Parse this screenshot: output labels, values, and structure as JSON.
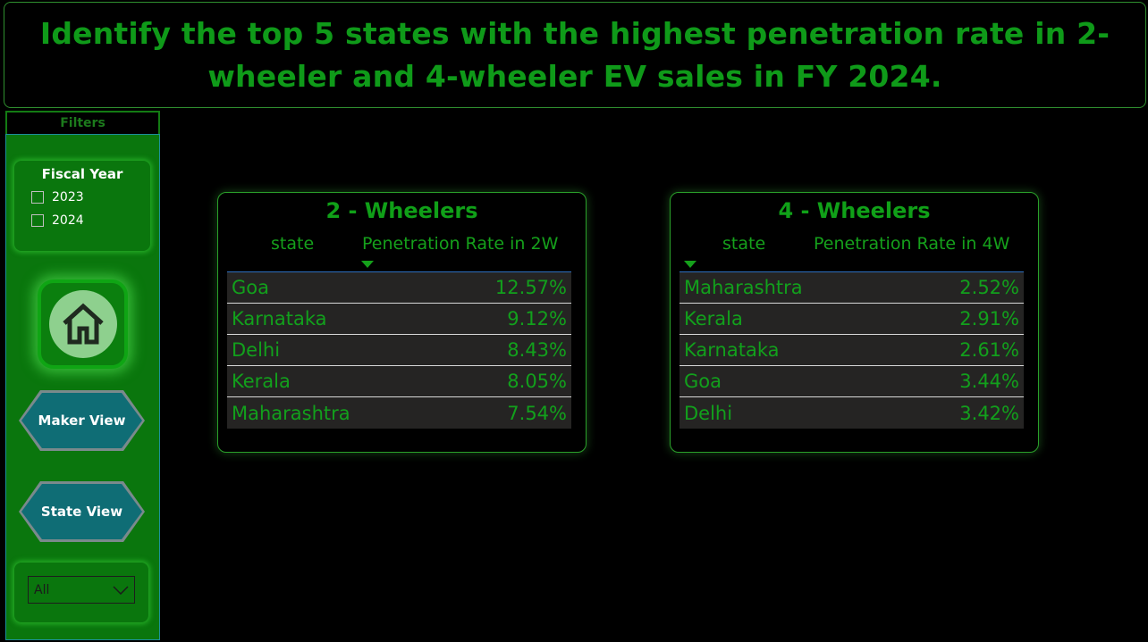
{
  "header": {
    "title": "Identify the top 5 states with the highest penetration rate in 2-wheeler and 4-wheeler EV sales in FY 2024."
  },
  "sidebar": {
    "filters_label": "Filters",
    "fiscal_year": {
      "title": "Fiscal Year",
      "options": [
        {
          "label": "2023",
          "checked": false
        },
        {
          "label": "2024",
          "checked": false
        }
      ]
    },
    "home_icon": "home-icon",
    "buttons": {
      "maker_view": "Maker View",
      "state_view": "State View"
    },
    "dropdown": {
      "value": "All",
      "icon": "chevron-down-icon"
    }
  },
  "two_wheelers": {
    "title": "2 - Wheelers",
    "col_state": "state",
    "col_rate": "Penetration Rate in 2W",
    "rows": [
      {
        "state": "Goa",
        "rate": "12.57%"
      },
      {
        "state": "Karnataka",
        "rate": "9.12%"
      },
      {
        "state": "Delhi",
        "rate": "8.43%"
      },
      {
        "state": "Kerala",
        "rate": "8.05%"
      },
      {
        "state": "Maharashtra",
        "rate": "7.54%"
      }
    ]
  },
  "four_wheelers": {
    "title": "4 - Wheelers",
    "col_state": "state",
    "col_rate": "Penetration Rate in 4W",
    "rows": [
      {
        "state": "Maharashtra",
        "rate": "2.52%"
      },
      {
        "state": "Kerala",
        "rate": "2.91%"
      },
      {
        "state": "Karnataka",
        "rate": "2.61%"
      },
      {
        "state": "Goa",
        "rate": "3.44%"
      },
      {
        "state": "Delhi",
        "rate": "3.42%"
      }
    ]
  },
  "colors": {
    "accent_green": "#10a018",
    "sidebar_green": "#0a760d",
    "button_teal": "#0f6d75",
    "row_bg": "#252423"
  }
}
